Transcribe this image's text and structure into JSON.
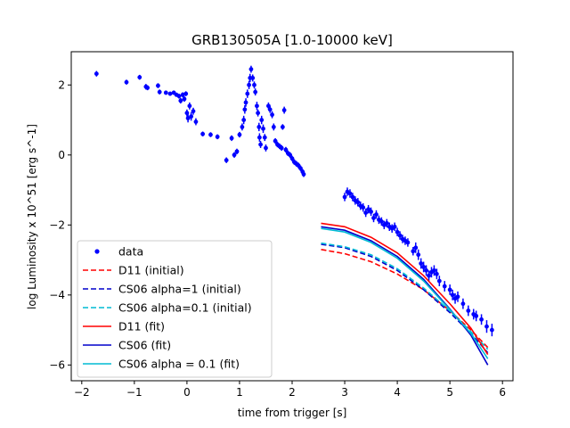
{
  "chart_data": {
    "type": "scatter",
    "title": "GRB130505A [1.0-10000 keV]",
    "xlabel": "time from trigger [s]",
    "ylabel": "log Luminosity x 10^51 [erg s^-1]",
    "xlim": [
      -2.2,
      6.2
    ],
    "ylim": [
      -6.45,
      2.95
    ],
    "xticks": [
      -2,
      -1,
      0,
      1,
      2,
      3,
      4,
      5,
      6
    ],
    "yticks": [
      -6,
      -4,
      -2,
      0,
      2
    ],
    "xtick_labels": [
      "−2",
      "−1",
      "0",
      "1",
      "2",
      "3",
      "4",
      "5",
      "6"
    ],
    "ytick_labels": [
      "−6",
      "−4",
      "−2",
      "0",
      "2"
    ],
    "grid": false,
    "legend_position": "lower-left",
    "data_series": {
      "name": "data",
      "color": "#0000ff",
      "points": [
        [
          -1.72,
          2.32,
          0.08
        ],
        [
          -1.15,
          2.08,
          0.07
        ],
        [
          -0.9,
          2.22,
          0.07
        ],
        [
          -0.78,
          1.95,
          0.08
        ],
        [
          -0.75,
          1.92,
          0.07
        ],
        [
          -0.55,
          1.98,
          0.07
        ],
        [
          -0.52,
          1.8,
          0.07
        ],
        [
          -0.4,
          1.78,
          0.06
        ],
        [
          -0.32,
          1.75,
          0.06
        ],
        [
          -0.25,
          1.78,
          0.06
        ],
        [
          -0.2,
          1.72,
          0.06
        ],
        [
          -0.15,
          1.68,
          0.07
        ],
        [
          -0.12,
          1.55,
          0.08
        ],
        [
          -0.08,
          1.72,
          0.07
        ],
        [
          -0.05,
          1.6,
          0.08
        ],
        [
          -0.02,
          1.75,
          0.07
        ],
        [
          0.0,
          1.2,
          0.1
        ],
        [
          0.02,
          1.05,
          0.12
        ],
        [
          0.05,
          1.4,
          0.1
        ],
        [
          0.08,
          1.1,
          0.12
        ],
        [
          0.12,
          1.25,
          0.1
        ],
        [
          0.17,
          0.95,
          0.1
        ],
        [
          0.3,
          0.6,
          0.07
        ],
        [
          0.45,
          0.58,
          0.07
        ],
        [
          0.58,
          0.52,
          0.07
        ],
        [
          0.75,
          -0.15,
          0.08
        ],
        [
          0.85,
          0.48,
          0.08
        ],
        [
          0.9,
          0.0,
          0.08
        ],
        [
          0.95,
          0.1,
          0.08
        ],
        [
          1.0,
          0.58,
          0.08
        ],
        [
          1.05,
          0.8,
          0.1
        ],
        [
          1.08,
          1.0,
          0.12
        ],
        [
          1.1,
          1.3,
          0.12
        ],
        [
          1.12,
          1.5,
          0.12
        ],
        [
          1.15,
          1.75,
          0.12
        ],
        [
          1.18,
          2.0,
          0.12
        ],
        [
          1.2,
          2.2,
          0.12
        ],
        [
          1.22,
          2.45,
          0.1
        ],
        [
          1.25,
          2.2,
          0.1
        ],
        [
          1.28,
          2.0,
          0.1
        ],
        [
          1.3,
          1.8,
          0.1
        ],
        [
          1.33,
          1.4,
          0.12
        ],
        [
          1.35,
          1.2,
          0.1
        ],
        [
          1.37,
          0.8,
          0.12
        ],
        [
          1.38,
          0.5,
          0.12
        ],
        [
          1.4,
          0.3,
          0.1
        ],
        [
          1.42,
          1.0,
          0.12
        ],
        [
          1.45,
          0.75,
          0.12
        ],
        [
          1.48,
          0.5,
          0.1
        ],
        [
          1.5,
          0.2,
          0.1
        ],
        [
          1.55,
          1.4,
          0.1
        ],
        [
          1.58,
          1.3,
          0.1
        ],
        [
          1.62,
          1.15,
          0.1
        ],
        [
          1.65,
          0.8,
          0.1
        ],
        [
          1.68,
          0.4,
          0.08
        ],
        [
          1.72,
          0.3,
          0.08
        ],
        [
          1.76,
          0.25,
          0.08
        ],
        [
          1.8,
          0.2,
          0.08
        ],
        [
          1.82,
          0.8,
          0.08
        ],
        [
          1.85,
          1.28,
          0.1
        ],
        [
          1.88,
          0.15,
          0.08
        ],
        [
          1.92,
          0.05,
          0.08
        ],
        [
          1.96,
          0.0,
          0.08
        ],
        [
          2.0,
          -0.1,
          0.08
        ],
        [
          2.04,
          -0.2,
          0.08
        ],
        [
          2.08,
          -0.25,
          0.08
        ],
        [
          2.12,
          -0.3,
          0.08
        ],
        [
          2.16,
          -0.38,
          0.08
        ],
        [
          2.2,
          -0.48,
          0.08
        ],
        [
          2.22,
          -0.55,
          0.08
        ],
        [
          3.0,
          -1.2,
          0.12
        ],
        [
          3.05,
          -1.05,
          0.12
        ],
        [
          3.1,
          -1.1,
          0.12
        ],
        [
          3.15,
          -1.2,
          0.12
        ],
        [
          3.2,
          -1.3,
          0.12
        ],
        [
          3.25,
          -1.35,
          0.12
        ],
        [
          3.3,
          -1.45,
          0.12
        ],
        [
          3.35,
          -1.5,
          0.12
        ],
        [
          3.4,
          -1.65,
          0.12
        ],
        [
          3.45,
          -1.55,
          0.12
        ],
        [
          3.5,
          -1.62,
          0.12
        ],
        [
          3.55,
          -1.8,
          0.12
        ],
        [
          3.6,
          -1.7,
          0.12
        ],
        [
          3.65,
          -1.85,
          0.12
        ],
        [
          3.7,
          -1.9,
          0.12
        ],
        [
          3.75,
          -2.0,
          0.12
        ],
        [
          3.8,
          -1.95,
          0.12
        ],
        [
          3.85,
          -2.05,
          0.12
        ],
        [
          3.9,
          -2.1,
          0.12
        ],
        [
          3.95,
          -2.05,
          0.12
        ],
        [
          4.0,
          -2.2,
          0.12
        ],
        [
          4.05,
          -2.3,
          0.12
        ],
        [
          4.1,
          -2.4,
          0.12
        ],
        [
          4.15,
          -2.45,
          0.12
        ],
        [
          4.2,
          -2.5,
          0.12
        ],
        [
          4.3,
          -2.75,
          0.12
        ],
        [
          4.35,
          -2.65,
          0.15
        ],
        [
          4.4,
          -2.85,
          0.15
        ],
        [
          4.45,
          -3.1,
          0.15
        ],
        [
          4.5,
          -3.2,
          0.15
        ],
        [
          4.55,
          -3.3,
          0.15
        ],
        [
          4.6,
          -3.45,
          0.15
        ],
        [
          4.65,
          -3.35,
          0.15
        ],
        [
          4.7,
          -3.3,
          0.15
        ],
        [
          4.75,
          -3.4,
          0.15
        ],
        [
          4.8,
          -3.6,
          0.15
        ],
        [
          4.9,
          -3.75,
          0.15
        ],
        [
          5.0,
          -3.85,
          0.15
        ],
        [
          5.05,
          -4.0,
          0.15
        ],
        [
          5.1,
          -4.1,
          0.15
        ],
        [
          5.15,
          -4.05,
          0.15
        ],
        [
          5.25,
          -4.25,
          0.15
        ],
        [
          5.35,
          -4.45,
          0.15
        ],
        [
          5.45,
          -4.55,
          0.15
        ],
        [
          5.5,
          -4.6,
          0.15
        ],
        [
          5.6,
          -4.7,
          0.15
        ],
        [
          5.7,
          -4.9,
          0.18
        ],
        [
          5.8,
          -5.0,
          0.18
        ]
      ]
    },
    "legend": [
      {
        "label": "data",
        "kind": "marker",
        "color": "#0000ff"
      },
      {
        "label": "D11 (initial)",
        "kind": "dashed",
        "color": "#ff0000"
      },
      {
        "label": "CS06 alpha=1 (initial)",
        "kind": "dashed",
        "color": "#0000cc"
      },
      {
        "label": "CS06 alpha=0.1 (initial)",
        "kind": "dashed",
        "color": "#00bcd4"
      },
      {
        "label": "D11 (fit)",
        "kind": "solid",
        "color": "#ff0000"
      },
      {
        "label": "CS06 (fit)",
        "kind": "solid",
        "color": "#0000cc"
      },
      {
        "label": "CS06 alpha = 0.1 (fit)",
        "kind": "solid",
        "color": "#00bcd4"
      }
    ],
    "series": [
      {
        "name": "D11 (initial)",
        "style": "dashed",
        "color": "#ff0000",
        "x": [
          2.55,
          3.0,
          3.5,
          4.0,
          4.5,
          5.0,
          5.4,
          5.72
        ],
        "y": [
          -2.7,
          -2.82,
          -3.05,
          -3.4,
          -3.85,
          -4.45,
          -5.0,
          -5.5
        ]
      },
      {
        "name": "CS06 alpha=1 (initial)",
        "style": "dashed",
        "color": "#0000cc",
        "x": [
          2.55,
          3.0,
          3.5,
          4.0,
          4.5,
          5.0,
          5.4,
          5.72
        ],
        "y": [
          -2.55,
          -2.65,
          -2.9,
          -3.3,
          -3.85,
          -4.5,
          -5.1,
          -5.65
        ]
      },
      {
        "name": "CS06 alpha=0.1 (initial)",
        "style": "dashed",
        "color": "#00bcd4",
        "x": [
          2.55,
          3.0,
          3.5,
          4.0,
          4.5,
          5.0,
          5.4,
          5.72
        ],
        "y": [
          -2.52,
          -2.62,
          -2.85,
          -3.25,
          -3.8,
          -4.45,
          -5.05,
          -5.55
        ]
      },
      {
        "name": "D11 (fit)",
        "style": "solid",
        "color": "#ff0000",
        "x": [
          2.55,
          3.0,
          3.5,
          4.0,
          4.5,
          5.0,
          5.4,
          5.72
        ],
        "y": [
          -1.95,
          -2.05,
          -2.35,
          -2.8,
          -3.45,
          -4.25,
          -4.95,
          -5.7
        ]
      },
      {
        "name": "CS06 (fit)",
        "style": "solid",
        "color": "#0000cc",
        "x": [
          2.55,
          3.0,
          3.5,
          4.0,
          4.5,
          5.0,
          5.4,
          5.72
        ],
        "y": [
          -2.05,
          -2.15,
          -2.45,
          -2.9,
          -3.55,
          -4.4,
          -5.15,
          -6.0
        ]
      },
      {
        "name": "CS06 alpha = 0.1 (fit)",
        "style": "solid",
        "color": "#00bcd4",
        "x": [
          2.55,
          3.0,
          3.5,
          4.0,
          4.5,
          5.0,
          5.4,
          5.72
        ],
        "y": [
          -2.1,
          -2.2,
          -2.5,
          -2.95,
          -3.6,
          -4.42,
          -5.1,
          -5.82
        ]
      }
    ]
  }
}
